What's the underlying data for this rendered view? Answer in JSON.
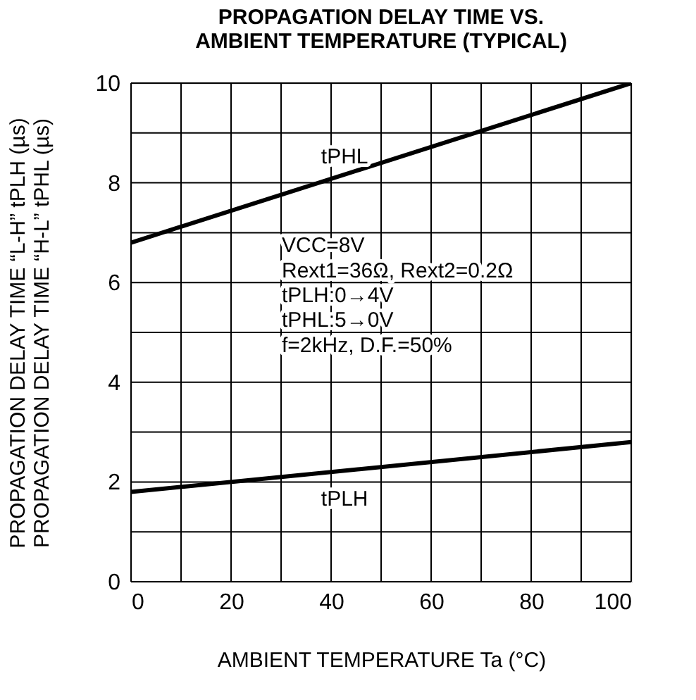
{
  "chart_data": {
    "type": "line",
    "title": [
      "PROPAGATION DELAY TIME VS.",
      "AMBIENT TEMPERATURE (TYPICAL)"
    ],
    "xlabel": "AMBIENT TEMPERATURE    Ta (°C)",
    "ylabel": "PROPAGATION DELAY TIME “L-H”    tPLH (µs)\nPROPAGATION DELAY TIME “H-L”    tPHL (µs)",
    "series": [
      {
        "name": "tPHL",
        "color": "#000000",
        "values": [
          6.8,
          10
        ]
      },
      {
        "name": "tPLH",
        "color": "#000000",
        "values": [
          1.8,
          2.8
        ]
      }
    ],
    "x": [
      0,
      100
    ],
    "xlim": [
      0,
      100
    ],
    "xticks": [
      0,
      {
        "value": 10,
        "label": null
      },
      20,
      {
        "value": 30,
        "label": null
      },
      40,
      {
        "value": 50,
        "label": null
      },
      60,
      {
        "value": 70,
        "label": null
      },
      80,
      {
        "value": 90,
        "label": null
      },
      100
    ],
    "ylim": [
      0,
      10
    ],
    "yticks": [
      0,
      {
        "value": 1,
        "label": null
      },
      2,
      {
        "value": 3,
        "label": null
      },
      4,
      {
        "value": 5,
        "label": null
      },
      6,
      {
        "value": 7,
        "label": null
      },
      8,
      {
        "value": 9,
        "label": null
      },
      10
    ],
    "grid": true,
    "legend": false,
    "line_style": "solid",
    "marker": "none",
    "annotations": [
      "VCC=8V",
      "Rext1=36Ω, Rext2=0.2Ω",
      "tPLH:0→4V",
      "tPHL:5→0V",
      "f=2kHz, D.F.=50%"
    ]
  }
}
